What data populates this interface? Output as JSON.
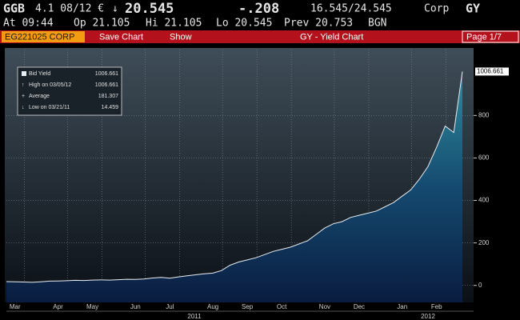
{
  "header": {
    "row1": [
      "GGB",
      "4.1 08/12 €",
      "↓",
      "20.545",
      "-.208",
      "16.545/24.545",
      "Corp",
      "GY"
    ],
    "row2": [
      "At 09:44",
      "Op 21.105",
      "Hi 21.105",
      "Lo 20.545",
      "Prev 20.753",
      "BGN"
    ],
    "toolbar": [
      "EG221025 CORP",
      "Save Chart",
      "Show",
      "GY - Yield Chart",
      "Page 1/7"
    ]
  },
  "chart_data": {
    "type": "area",
    "categories": [
      null,
      "Mar",
      null,
      null,
      null,
      null,
      "Apr",
      null,
      null,
      null,
      "May",
      null,
      null,
      null,
      null,
      "Jun",
      null,
      null,
      null,
      "Jul",
      null,
      null,
      null,
      null,
      "Aug",
      null,
      null,
      null,
      "Sep",
      null,
      null,
      null,
      "Oct",
      null,
      null,
      null,
      null,
      "Nov",
      null,
      null,
      null,
      "Dec",
      null,
      null,
      null,
      null,
      "Jan",
      null,
      null,
      null,
      "Feb",
      null,
      null,
      null
    ],
    "series": [
      {
        "name": "Bid Yield",
        "color": "#e8eef2",
        "values": [
          18,
          17,
          16,
          14.459,
          17,
          20,
          21,
          22,
          24,
          23,
          25,
          26,
          25,
          27,
          29,
          28,
          30,
          35,
          38,
          34,
          40,
          45,
          50,
          55,
          58,
          70,
          95,
          110,
          120,
          130,
          145,
          160,
          170,
          180,
          195,
          210,
          240,
          270,
          290,
          300,
          320,
          330,
          340,
          350,
          370,
          390,
          420,
          450,
          500,
          560,
          650,
          750,
          720,
          1006.661
        ]
      }
    ],
    "stats": [
      {
        "label": "High on 03/05/12",
        "value": 1006.661
      },
      {
        "label": "Average",
        "value": 181.307
      },
      {
        "label": "Low on 03/21/11",
        "value": 14.459
      }
    ],
    "year_labels": [
      "2011",
      "2012"
    ],
    "ylim": [
      -80,
      1110
    ],
    "yticks": [
      0,
      200,
      400,
      600,
      800
    ],
    "grid": true
  }
}
